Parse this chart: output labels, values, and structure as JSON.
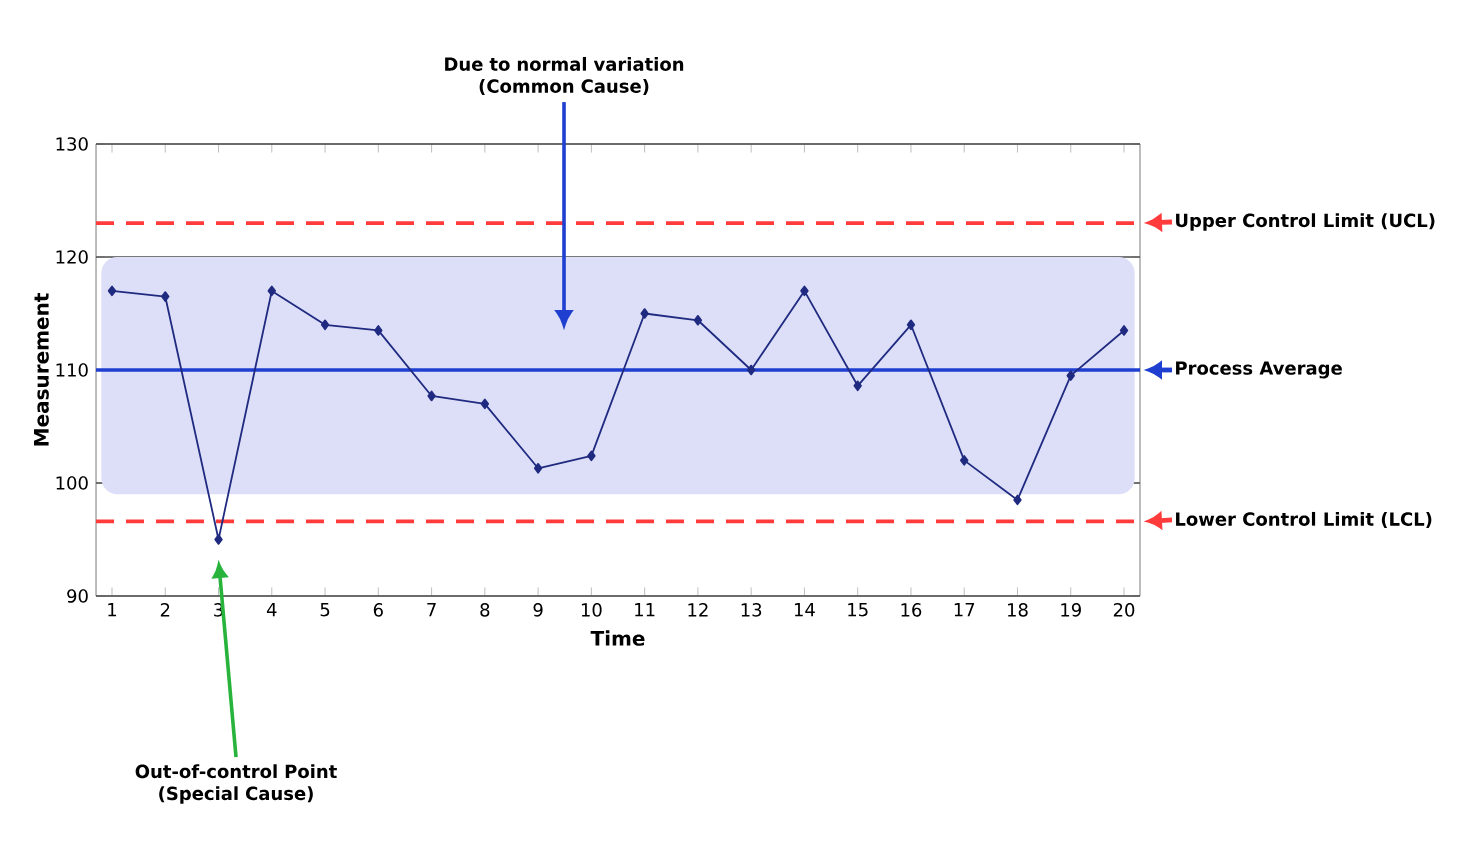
{
  "chart_data": {
    "type": "line",
    "xlabel": "Time",
    "ylabel": "Measurement",
    "categories": [
      "1",
      "2",
      "3",
      "4",
      "5",
      "6",
      "7",
      "8",
      "9",
      "10",
      "11",
      "12",
      "13",
      "14",
      "15",
      "16",
      "17",
      "18",
      "19",
      "20"
    ],
    "series": [
      {
        "color": "#1f2a80",
        "values": [
          117,
          116.5,
          95,
          117,
          114,
          113.5,
          107.7,
          107,
          101.3,
          102.4,
          115,
          114.4,
          110,
          117,
          108.6,
          114,
          102,
          98.5,
          109.5,
          113.5
        ]
      }
    ],
    "ylim": [
      90,
      130
    ],
    "yticks": [
      90,
      100,
      110,
      120,
      130
    ],
    "grid": "y",
    "marker": "diamond",
    "line_style": "solid",
    "ref_lines": [
      {
        "axis": "y",
        "value": 123,
        "label": "Upper Control Limit (UCL)",
        "color": "#ff3b3b",
        "line_style": "dashed"
      },
      {
        "axis": "y",
        "value": 110,
        "label": "Process Average",
        "color": "#1f3fd0",
        "line_style": "solid"
      },
      {
        "axis": "y",
        "value": 96.6,
        "label": "Lower Control Limit (LCL)",
        "color": "#ff3b3b",
        "line_style": "dashed"
      }
    ],
    "bands": [
      {
        "axis": "y",
        "from": 99,
        "to": 120,
        "color": "#dcdff7"
      }
    ],
    "annotations": [
      "Due to normal variation (Common Cause)",
      "Out-of-control Point (Special Cause)"
    ]
  }
}
